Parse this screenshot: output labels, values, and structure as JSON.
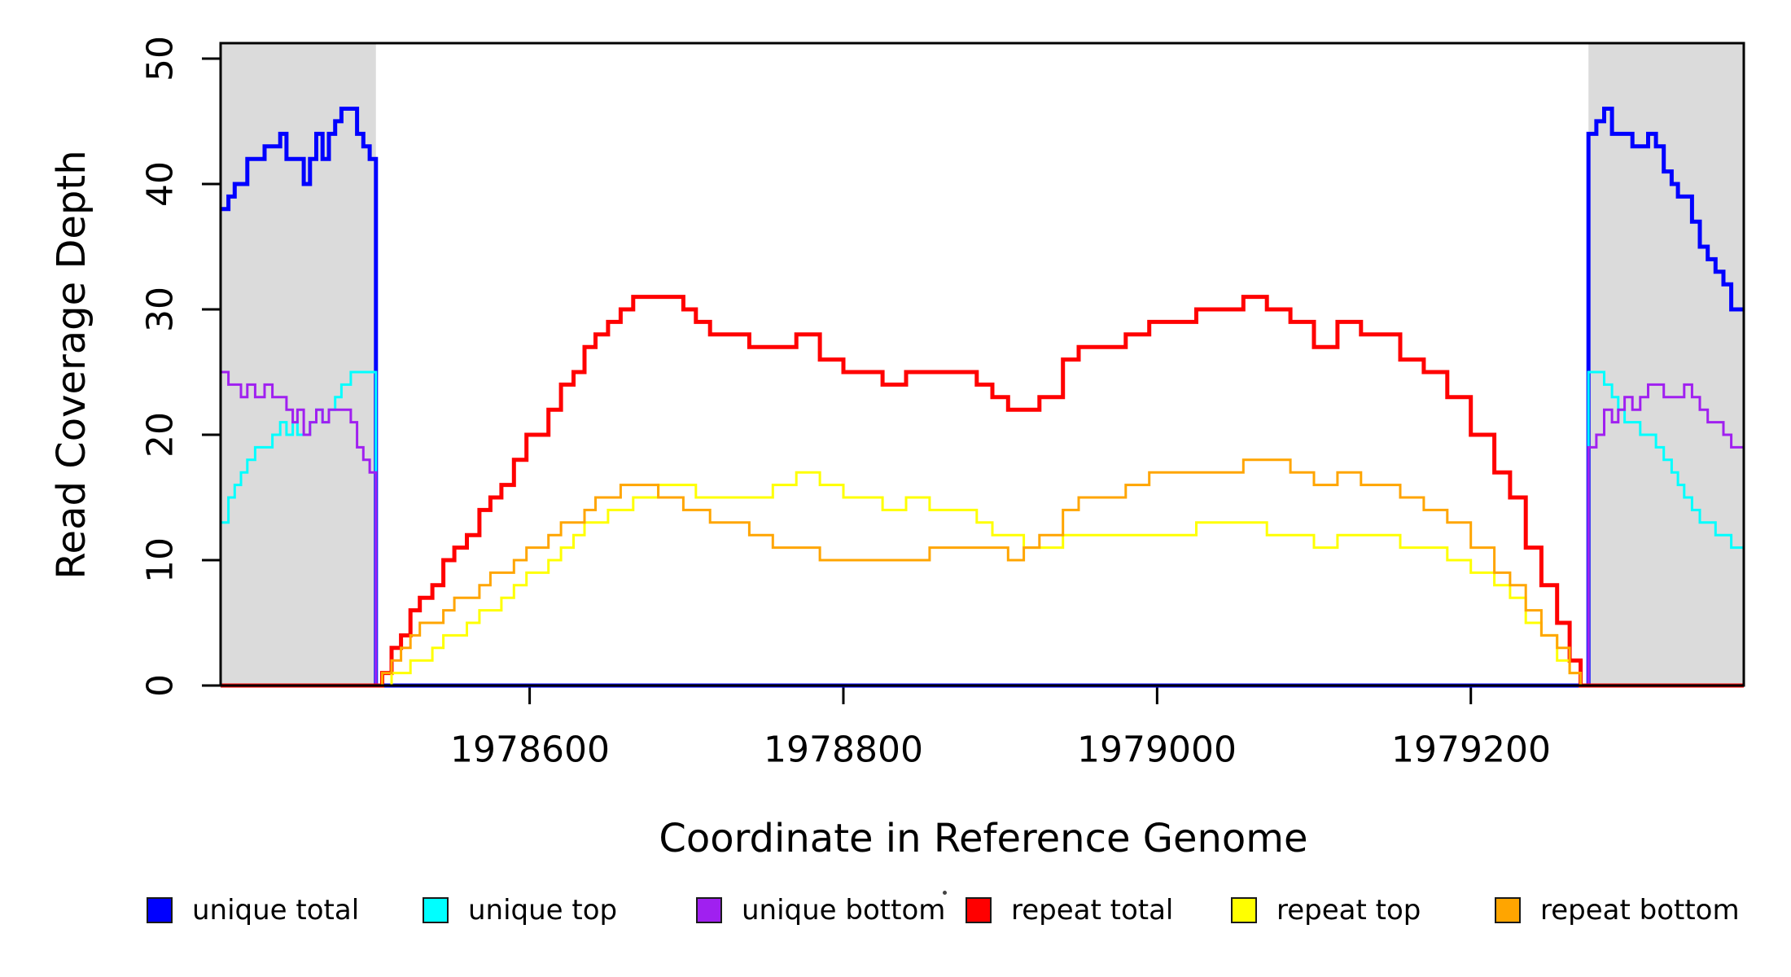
{
  "figure": {
    "background": "#FFFFFF",
    "shade_color": "#DBDBDB",
    "frame_color": "#000000",
    "tick_color": "#000000"
  },
  "chart_data": {
    "type": "line",
    "step": true,
    "title": "",
    "xlabel": "Coordinate in Reference Genome",
    "ylabel": "Read Coverage Depth",
    "xlim": [
      1978403,
      1979374
    ],
    "ylim": [
      0,
      51.23
    ],
    "x_ticks": [
      1978600,
      1978800,
      1979000,
      1979200
    ],
    "y_ticks": [
      0,
      10,
      20,
      30,
      40,
      50
    ],
    "grid": false,
    "legend_position": "bottom",
    "shaded_regions": [
      {
        "name": "unique-left",
        "from": 1978403,
        "to": 1978502
      },
      {
        "name": "unique-right",
        "to": 1979374,
        "from": 1979275
      }
    ],
    "series": [
      {
        "name": "unique total",
        "color": "#0000FF",
        "line_width": 5,
        "points": [
          [
            1978403,
            38
          ],
          [
            1978408,
            39
          ],
          [
            1978412,
            40
          ],
          [
            1978416,
            40
          ],
          [
            1978420,
            42
          ],
          [
            1978425,
            42
          ],
          [
            1978431,
            43
          ],
          [
            1978436,
            43
          ],
          [
            1978441,
            44
          ],
          [
            1978445,
            42
          ],
          [
            1978449,
            42
          ],
          [
            1978452,
            42
          ],
          [
            1978456,
            40
          ],
          [
            1978460,
            42
          ],
          [
            1978464,
            44
          ],
          [
            1978468,
            42
          ],
          [
            1978472,
            44
          ],
          [
            1978476,
            45
          ],
          [
            1978480,
            46
          ],
          [
            1978486,
            46
          ],
          [
            1978490,
            44
          ],
          [
            1978494,
            43
          ],
          [
            1978498,
            42
          ],
          [
            1978502,
            0
          ],
          [
            1979275,
            44
          ],
          [
            1979280,
            45
          ],
          [
            1979285,
            46
          ],
          [
            1979290,
            44
          ],
          [
            1979294,
            44
          ],
          [
            1979298,
            44
          ],
          [
            1979303,
            43
          ],
          [
            1979308,
            43
          ],
          [
            1979313,
            44
          ],
          [
            1979318,
            43
          ],
          [
            1979323,
            41
          ],
          [
            1979328,
            40
          ],
          [
            1979332,
            39
          ],
          [
            1979336,
            39
          ],
          [
            1979341,
            37
          ],
          [
            1979346,
            35
          ],
          [
            1979351,
            34
          ],
          [
            1979356,
            33
          ],
          [
            1979361,
            32
          ],
          [
            1979366,
            30
          ],
          [
            1979374,
            30
          ]
        ]
      },
      {
        "name": "unique top",
        "color": "#00FFFF",
        "line_width": 3,
        "points": [
          [
            1978403,
            13
          ],
          [
            1978408,
            15
          ],
          [
            1978412,
            16
          ],
          [
            1978416,
            17
          ],
          [
            1978420,
            18
          ],
          [
            1978425,
            19
          ],
          [
            1978431,
            19
          ],
          [
            1978436,
            20
          ],
          [
            1978441,
            21
          ],
          [
            1978445,
            20
          ],
          [
            1978449,
            21
          ],
          [
            1978452,
            20
          ],
          [
            1978456,
            20
          ],
          [
            1978460,
            21
          ],
          [
            1978464,
            22
          ],
          [
            1978468,
            21
          ],
          [
            1978472,
            22
          ],
          [
            1978476,
            23
          ],
          [
            1978480,
            24
          ],
          [
            1978486,
            25
          ],
          [
            1978502,
            0
          ],
          [
            1979275,
            25
          ],
          [
            1979280,
            25
          ],
          [
            1979285,
            24
          ],
          [
            1979290,
            23
          ],
          [
            1979294,
            22
          ],
          [
            1979298,
            21
          ],
          [
            1979303,
            21
          ],
          [
            1979308,
            20
          ],
          [
            1979313,
            20
          ],
          [
            1979318,
            19
          ],
          [
            1979323,
            18
          ],
          [
            1979328,
            17
          ],
          [
            1979332,
            16
          ],
          [
            1979336,
            15
          ],
          [
            1979341,
            14
          ],
          [
            1979346,
            13
          ],
          [
            1979351,
            13
          ],
          [
            1979356,
            12
          ],
          [
            1979361,
            12
          ],
          [
            1979366,
            11
          ],
          [
            1979374,
            11
          ]
        ]
      },
      {
        "name": "unique bottom",
        "color": "#A020F0",
        "line_width": 3,
        "points": [
          [
            1978403,
            25
          ],
          [
            1978408,
            24
          ],
          [
            1978412,
            24
          ],
          [
            1978416,
            23
          ],
          [
            1978420,
            24
          ],
          [
            1978425,
            23
          ],
          [
            1978431,
            24
          ],
          [
            1978436,
            23
          ],
          [
            1978441,
            23
          ],
          [
            1978445,
            22
          ],
          [
            1978449,
            21
          ],
          [
            1978452,
            22
          ],
          [
            1978456,
            20
          ],
          [
            1978460,
            21
          ],
          [
            1978464,
            22
          ],
          [
            1978468,
            21
          ],
          [
            1978472,
            22
          ],
          [
            1978476,
            22
          ],
          [
            1978480,
            22
          ],
          [
            1978486,
            21
          ],
          [
            1978490,
            19
          ],
          [
            1978494,
            18
          ],
          [
            1978498,
            17
          ],
          [
            1978502,
            0
          ],
          [
            1979275,
            19
          ],
          [
            1979280,
            20
          ],
          [
            1979285,
            22
          ],
          [
            1979290,
            21
          ],
          [
            1979294,
            22
          ],
          [
            1979298,
            23
          ],
          [
            1979303,
            22
          ],
          [
            1979308,
            23
          ],
          [
            1979313,
            24
          ],
          [
            1979318,
            24
          ],
          [
            1979323,
            23
          ],
          [
            1979328,
            23
          ],
          [
            1979332,
            23
          ],
          [
            1979336,
            24
          ],
          [
            1979341,
            23
          ],
          [
            1979346,
            22
          ],
          [
            1979351,
            21
          ],
          [
            1979356,
            21
          ],
          [
            1979361,
            20
          ],
          [
            1979366,
            19
          ],
          [
            1979374,
            19
          ]
        ]
      },
      {
        "name": "repeat total",
        "color": "#FF0000",
        "line_width": 5,
        "points": [
          [
            1978403,
            0
          ],
          [
            1978506,
            1
          ],
          [
            1978512,
            3
          ],
          [
            1978518,
            4
          ],
          [
            1978524,
            6
          ],
          [
            1978530,
            7
          ],
          [
            1978538,
            8
          ],
          [
            1978545,
            10
          ],
          [
            1978552,
            11
          ],
          [
            1978560,
            12
          ],
          [
            1978568,
            14
          ],
          [
            1978575,
            15
          ],
          [
            1978582,
            16
          ],
          [
            1978590,
            18
          ],
          [
            1978598,
            20
          ],
          [
            1978605,
            20
          ],
          [
            1978612,
            22
          ],
          [
            1978620,
            24
          ],
          [
            1978628,
            25
          ],
          [
            1978635,
            27
          ],
          [
            1978642,
            28
          ],
          [
            1978650,
            29
          ],
          [
            1978658,
            30
          ],
          [
            1978666,
            31
          ],
          [
            1978674,
            31
          ],
          [
            1978682,
            31
          ],
          [
            1978690,
            31
          ],
          [
            1978698,
            30
          ],
          [
            1978706,
            29
          ],
          [
            1978715,
            28
          ],
          [
            1978725,
            28
          ],
          [
            1978740,
            27
          ],
          [
            1978755,
            27
          ],
          [
            1978770,
            28
          ],
          [
            1978785,
            26
          ],
          [
            1978800,
            25
          ],
          [
            1978815,
            25
          ],
          [
            1978825,
            24
          ],
          [
            1978840,
            25
          ],
          [
            1978855,
            25
          ],
          [
            1978870,
            25
          ],
          [
            1978885,
            24
          ],
          [
            1978895,
            23
          ],
          [
            1978905,
            22
          ],
          [
            1978915,
            22
          ],
          [
            1978925,
            23
          ],
          [
            1978940,
            26
          ],
          [
            1978950,
            27
          ],
          [
            1978965,
            27
          ],
          [
            1978980,
            28
          ],
          [
            1978995,
            29
          ],
          [
            1979010,
            29
          ],
          [
            1979025,
            30
          ],
          [
            1979040,
            30
          ],
          [
            1979055,
            31
          ],
          [
            1979070,
            30
          ],
          [
            1979085,
            29
          ],
          [
            1979100,
            27
          ],
          [
            1979115,
            29
          ],
          [
            1979130,
            28
          ],
          [
            1979145,
            28
          ],
          [
            1979155,
            26
          ],
          [
            1979170,
            25
          ],
          [
            1979185,
            23
          ],
          [
            1979200,
            20
          ],
          [
            1979215,
            17
          ],
          [
            1979225,
            15
          ],
          [
            1979235,
            11
          ],
          [
            1979245,
            8
          ],
          [
            1979255,
            5
          ],
          [
            1979263,
            2
          ],
          [
            1979270,
            0
          ],
          [
            1979374,
            0
          ]
        ]
      },
      {
        "name": "repeat top",
        "color": "#FFFF00",
        "line_width": 3,
        "points": [
          [
            1978403,
            0
          ],
          [
            1978512,
            1
          ],
          [
            1978524,
            2
          ],
          [
            1978538,
            3
          ],
          [
            1978545,
            4
          ],
          [
            1978560,
            5
          ],
          [
            1978568,
            6
          ],
          [
            1978582,
            7
          ],
          [
            1978590,
            8
          ],
          [
            1978598,
            9
          ],
          [
            1978612,
            10
          ],
          [
            1978620,
            11
          ],
          [
            1978628,
            12
          ],
          [
            1978635,
            13
          ],
          [
            1978650,
            14
          ],
          [
            1978666,
            15
          ],
          [
            1978682,
            16
          ],
          [
            1978706,
            15
          ],
          [
            1978755,
            16
          ],
          [
            1978770,
            17
          ],
          [
            1978785,
            16
          ],
          [
            1978800,
            15
          ],
          [
            1978825,
            14
          ],
          [
            1978840,
            15
          ],
          [
            1978855,
            14
          ],
          [
            1978885,
            13
          ],
          [
            1978895,
            12
          ],
          [
            1978915,
            11
          ],
          [
            1978940,
            12
          ],
          [
            1979025,
            13
          ],
          [
            1979070,
            12
          ],
          [
            1979100,
            11
          ],
          [
            1979115,
            12
          ],
          [
            1979155,
            11
          ],
          [
            1979185,
            10
          ],
          [
            1979200,
            9
          ],
          [
            1979215,
            8
          ],
          [
            1979225,
            7
          ],
          [
            1979235,
            5
          ],
          [
            1979245,
            4
          ],
          [
            1979255,
            2
          ],
          [
            1979263,
            1
          ],
          [
            1979270,
            0
          ],
          [
            1979374,
            0
          ]
        ]
      },
      {
        "name": "repeat bottom",
        "color": "#FFA500",
        "line_width": 3,
        "points": [
          [
            1978403,
            0
          ],
          [
            1978506,
            1
          ],
          [
            1978512,
            2
          ],
          [
            1978518,
            3
          ],
          [
            1978524,
            4
          ],
          [
            1978530,
            5
          ],
          [
            1978545,
            6
          ],
          [
            1978552,
            7
          ],
          [
            1978568,
            8
          ],
          [
            1978575,
            9
          ],
          [
            1978590,
            10
          ],
          [
            1978598,
            11
          ],
          [
            1978612,
            12
          ],
          [
            1978620,
            13
          ],
          [
            1978635,
            14
          ],
          [
            1978642,
            15
          ],
          [
            1978658,
            16
          ],
          [
            1978682,
            15
          ],
          [
            1978698,
            14
          ],
          [
            1978715,
            13
          ],
          [
            1978740,
            12
          ],
          [
            1978755,
            11
          ],
          [
            1978785,
            10
          ],
          [
            1978855,
            11
          ],
          [
            1978905,
            10
          ],
          [
            1978915,
            11
          ],
          [
            1978925,
            12
          ],
          [
            1978940,
            14
          ],
          [
            1978950,
            15
          ],
          [
            1978980,
            16
          ],
          [
            1978995,
            17
          ],
          [
            1979055,
            18
          ],
          [
            1979085,
            17
          ],
          [
            1979100,
            16
          ],
          [
            1979115,
            17
          ],
          [
            1979130,
            16
          ],
          [
            1979155,
            15
          ],
          [
            1979170,
            14
          ],
          [
            1979185,
            13
          ],
          [
            1979200,
            11
          ],
          [
            1979215,
            9
          ],
          [
            1979225,
            8
          ],
          [
            1979235,
            6
          ],
          [
            1979245,
            4
          ],
          [
            1979255,
            3
          ],
          [
            1979263,
            1
          ],
          [
            1979270,
            0
          ],
          [
            1979374,
            0
          ]
        ]
      }
    ]
  }
}
